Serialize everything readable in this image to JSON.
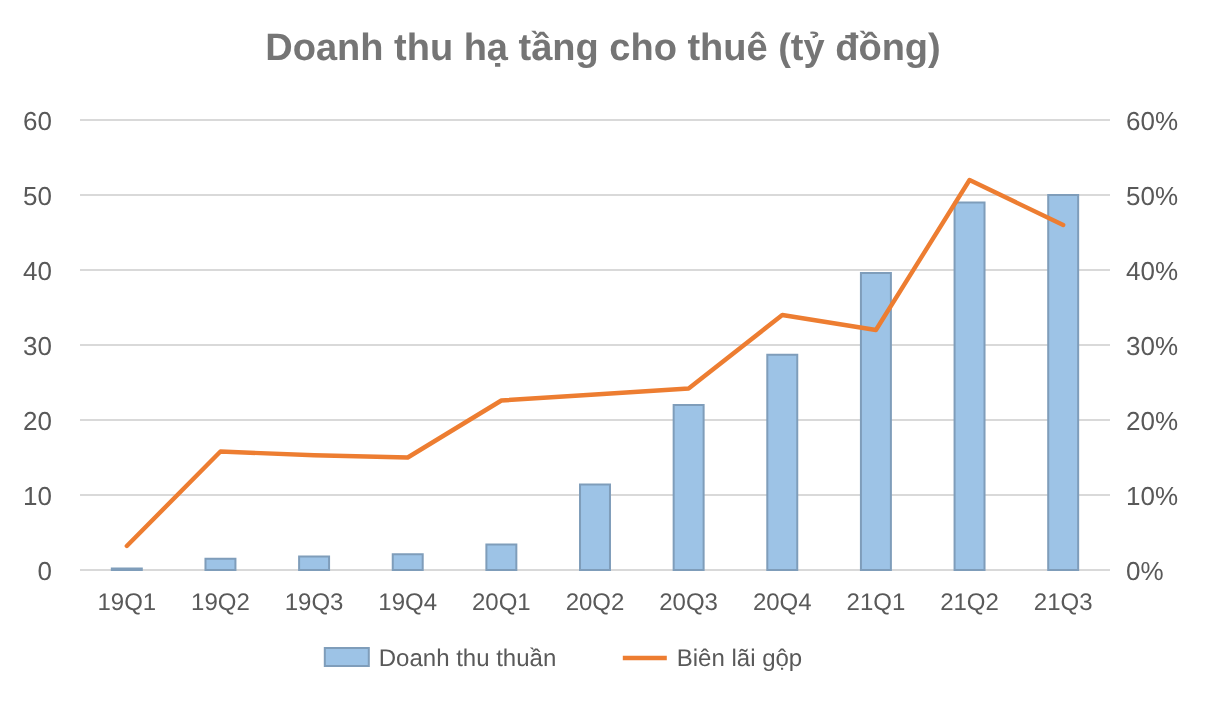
{
  "chart_data": {
    "type": "bar",
    "title": "Doanh thu hạ tầng cho thuê (tỷ đồng)",
    "categories": [
      "19Q1",
      "19Q2",
      "19Q3",
      "19Q4",
      "20Q1",
      "20Q2",
      "20Q3",
      "20Q4",
      "21Q1",
      "21Q2",
      "21Q3"
    ],
    "series": [
      {
        "name": "Doanh thu thuần",
        "color": "#9dc3e6",
        "values": [
          0.2,
          1.5,
          1.8,
          2.1,
          3.4,
          11.4,
          22,
          28.7,
          39.6,
          49,
          50
        ]
      },
      {
        "name": "Biên lãi gộp",
        "type": "line",
        "axis": "y2",
        "color": "#ed7d31",
        "values": [
          3.2,
          15.8,
          15.3,
          15,
          22.6,
          23.4,
          24.2,
          34,
          32,
          52,
          46
        ]
      }
    ],
    "ylim": [
      0,
      60
    ],
    "yticks": [
      0,
      10,
      20,
      30,
      40,
      50,
      60
    ],
    "y2lim": [
      0,
      60
    ],
    "y2ticks": [
      {
        "value": 0,
        "label": "0%"
      },
      {
        "value": 10,
        "label": "10%"
      },
      {
        "value": 20,
        "label": "20%"
      },
      {
        "value": 30,
        "label": "30%"
      },
      {
        "value": 40,
        "label": "40%"
      },
      {
        "value": 50,
        "label": "50%"
      },
      {
        "value": 60,
        "label": "60%"
      }
    ],
    "grid": "y",
    "legend": "bottom",
    "marker": "none",
    "line_style": "solid"
  }
}
